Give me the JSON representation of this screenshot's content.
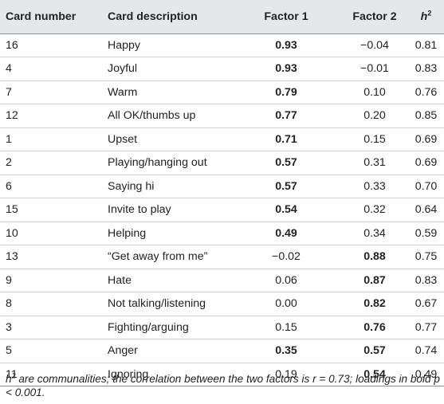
{
  "table": {
    "headers": {
      "card_number": "Card number",
      "card_description": "Card description",
      "factor1": "Factor 1",
      "factor2": "Factor 2",
      "h_base": "h",
      "h_sup": "2"
    },
    "rows": [
      {
        "card": "16",
        "desc": "Happy",
        "f1": "0.93",
        "f2": "−0.04",
        "h2": "0.81",
        "f1_bold": true,
        "f2_bold": false
      },
      {
        "card": "4",
        "desc": "Joyful",
        "f1": "0.93",
        "f2": "−0.01",
        "h2": "0.83",
        "f1_bold": true,
        "f2_bold": false
      },
      {
        "card": "7",
        "desc": "Warm",
        "f1": "0.79",
        "f2": "0.10",
        "h2": "0.76",
        "f1_bold": true,
        "f2_bold": false
      },
      {
        "card": "12",
        "desc": "All OK/thumbs up",
        "f1": "0.77",
        "f2": "0.20",
        "h2": "0.85",
        "f1_bold": true,
        "f2_bold": false
      },
      {
        "card": "1",
        "desc": "Upset",
        "f1": "0.71",
        "f2": "0.15",
        "h2": "0.69",
        "f1_bold": true,
        "f2_bold": false
      },
      {
        "card": "2",
        "desc": "Playing/hanging out",
        "f1": "0.57",
        "f2": "0.31",
        "h2": "0.69",
        "f1_bold": true,
        "f2_bold": false
      },
      {
        "card": "6",
        "desc": "Saying hi",
        "f1": "0.57",
        "f2": "0.33",
        "h2": "0.70",
        "f1_bold": true,
        "f2_bold": false
      },
      {
        "card": "15",
        "desc": "Invite to play",
        "f1": "0.54",
        "f2": "0.32",
        "h2": "0.64",
        "f1_bold": true,
        "f2_bold": false
      },
      {
        "card": "10",
        "desc": "Helping",
        "f1": "0.49",
        "f2": "0.34",
        "h2": "0.59",
        "f1_bold": true,
        "f2_bold": false
      },
      {
        "card": "13",
        "desc": "“Get away from me”",
        "f1": "−0.02",
        "f2": "0.88",
        "h2": "0.75",
        "f1_bold": false,
        "f2_bold": true
      },
      {
        "card": "9",
        "desc": "Hate",
        "f1": "0.06",
        "f2": "0.87",
        "h2": "0.83",
        "f1_bold": false,
        "f2_bold": true
      },
      {
        "card": "8",
        "desc": "Not talking/listening",
        "f1": "0.00",
        "f2": "0.82",
        "h2": "0.67",
        "f1_bold": false,
        "f2_bold": true
      },
      {
        "card": "3",
        "desc": "Fighting/arguing",
        "f1": "0.15",
        "f2": "0.76",
        "h2": "0.77",
        "f1_bold": false,
        "f2_bold": true
      },
      {
        "card": "5",
        "desc": "Anger",
        "f1": "0.35",
        "f2": "0.57",
        "h2": "0.74",
        "f1_bold": true,
        "f2_bold": true
      },
      {
        "card": "11",
        "desc": "Ignoring",
        "f1": "0.19",
        "f2": "0.54",
        "h2": "0.49",
        "f1_bold": false,
        "f2_bold": true
      }
    ]
  },
  "footnote": {
    "h_base": "h",
    "h_sup": "2",
    "text": " are communalities; the correlation between the two factors is r = 0.73; loadings in bold p < 0.001."
  }
}
